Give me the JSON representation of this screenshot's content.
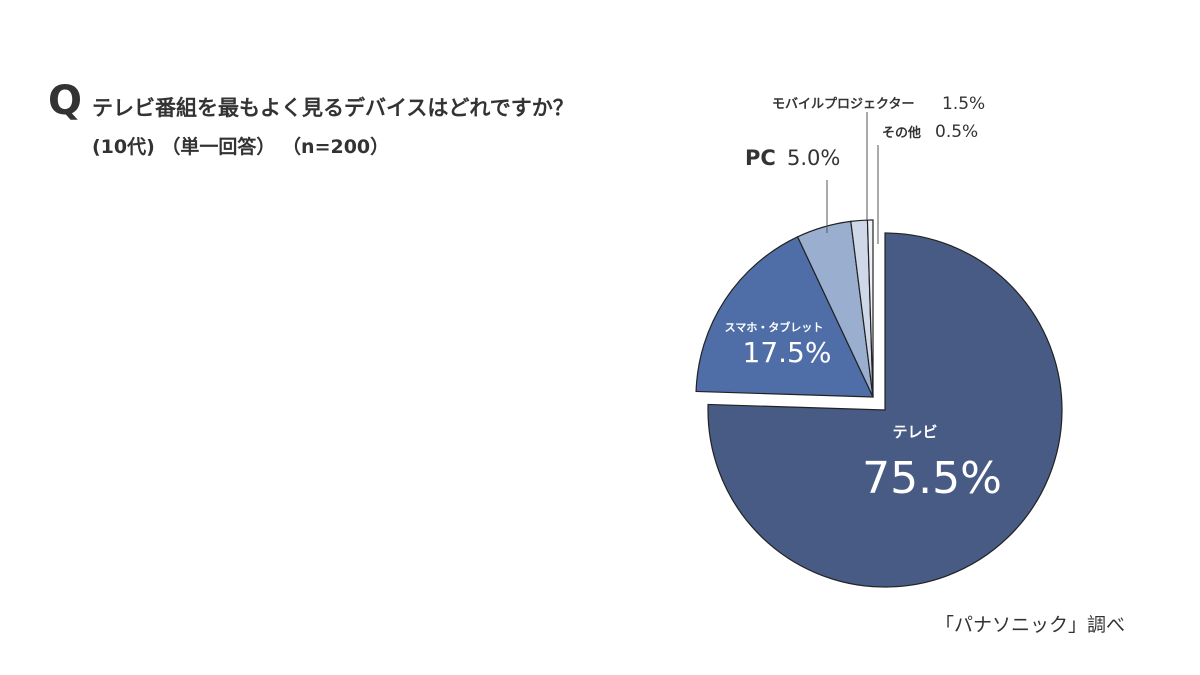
{
  "header": {
    "q_mark": "Q",
    "question": "テレビ番組を最もよく見るデバイスはどれですか？",
    "subtitle": "(10代) （単一回答） （n=200）"
  },
  "source": "「パナソニック」調べ",
  "chart_data": {
    "type": "pie",
    "slices": [
      {
        "label": "テレビ",
        "value": 75.5,
        "value_label": "75.5%",
        "color": "#475b85"
      },
      {
        "label": "スマホ・タブレット",
        "value": 17.5,
        "value_label": "17.5%",
        "color": "#4f6ea8"
      },
      {
        "label": "PC",
        "value": 5.0,
        "value_label": "5.0%",
        "color": "#9aafcf"
      },
      {
        "label": "モバイルプロジェクター",
        "value": 1.5,
        "value_label": "1.5%",
        "color": "#cfd8e8"
      },
      {
        "label": "その他",
        "value": 0.5,
        "value_label": "0.5%",
        "color": "#eef1f7"
      }
    ],
    "start": "12 o'clock, clockwise",
    "exploded": "テレビ"
  }
}
